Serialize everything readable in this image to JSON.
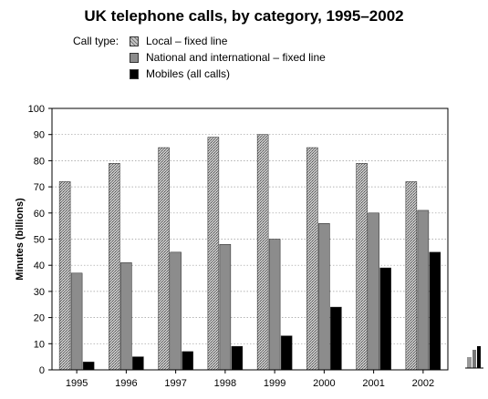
{
  "colors": {
    "local": "#9a9a9a",
    "national": "#8c8c8c",
    "mobiles": "#000000"
  },
  "legend_label": "Call type:",
  "chart_data": {
    "type": "bar",
    "title": "UK telephone calls, by category, 1995–2002",
    "xlabel": "",
    "ylabel": "Minutes (billions)",
    "ylim": [
      0,
      100
    ],
    "yticks": [
      0,
      10,
      20,
      30,
      40,
      50,
      60,
      70,
      80,
      90,
      100
    ],
    "grid": true,
    "legend_position": "top-left",
    "categories": [
      "1995",
      "1996",
      "1997",
      "1998",
      "1999",
      "2000",
      "2001",
      "2002"
    ],
    "series": [
      {
        "name": "Local – fixed line",
        "values": [
          72,
          79,
          85,
          89,
          90,
          85,
          79,
          72
        ]
      },
      {
        "name": "National and international – fixed line",
        "values": [
          37,
          41,
          45,
          48,
          50,
          56,
          60,
          61
        ]
      },
      {
        "name": "Mobiles (all calls)",
        "values": [
          3,
          5,
          7,
          9,
          13,
          24,
          39,
          45
        ]
      }
    ]
  }
}
